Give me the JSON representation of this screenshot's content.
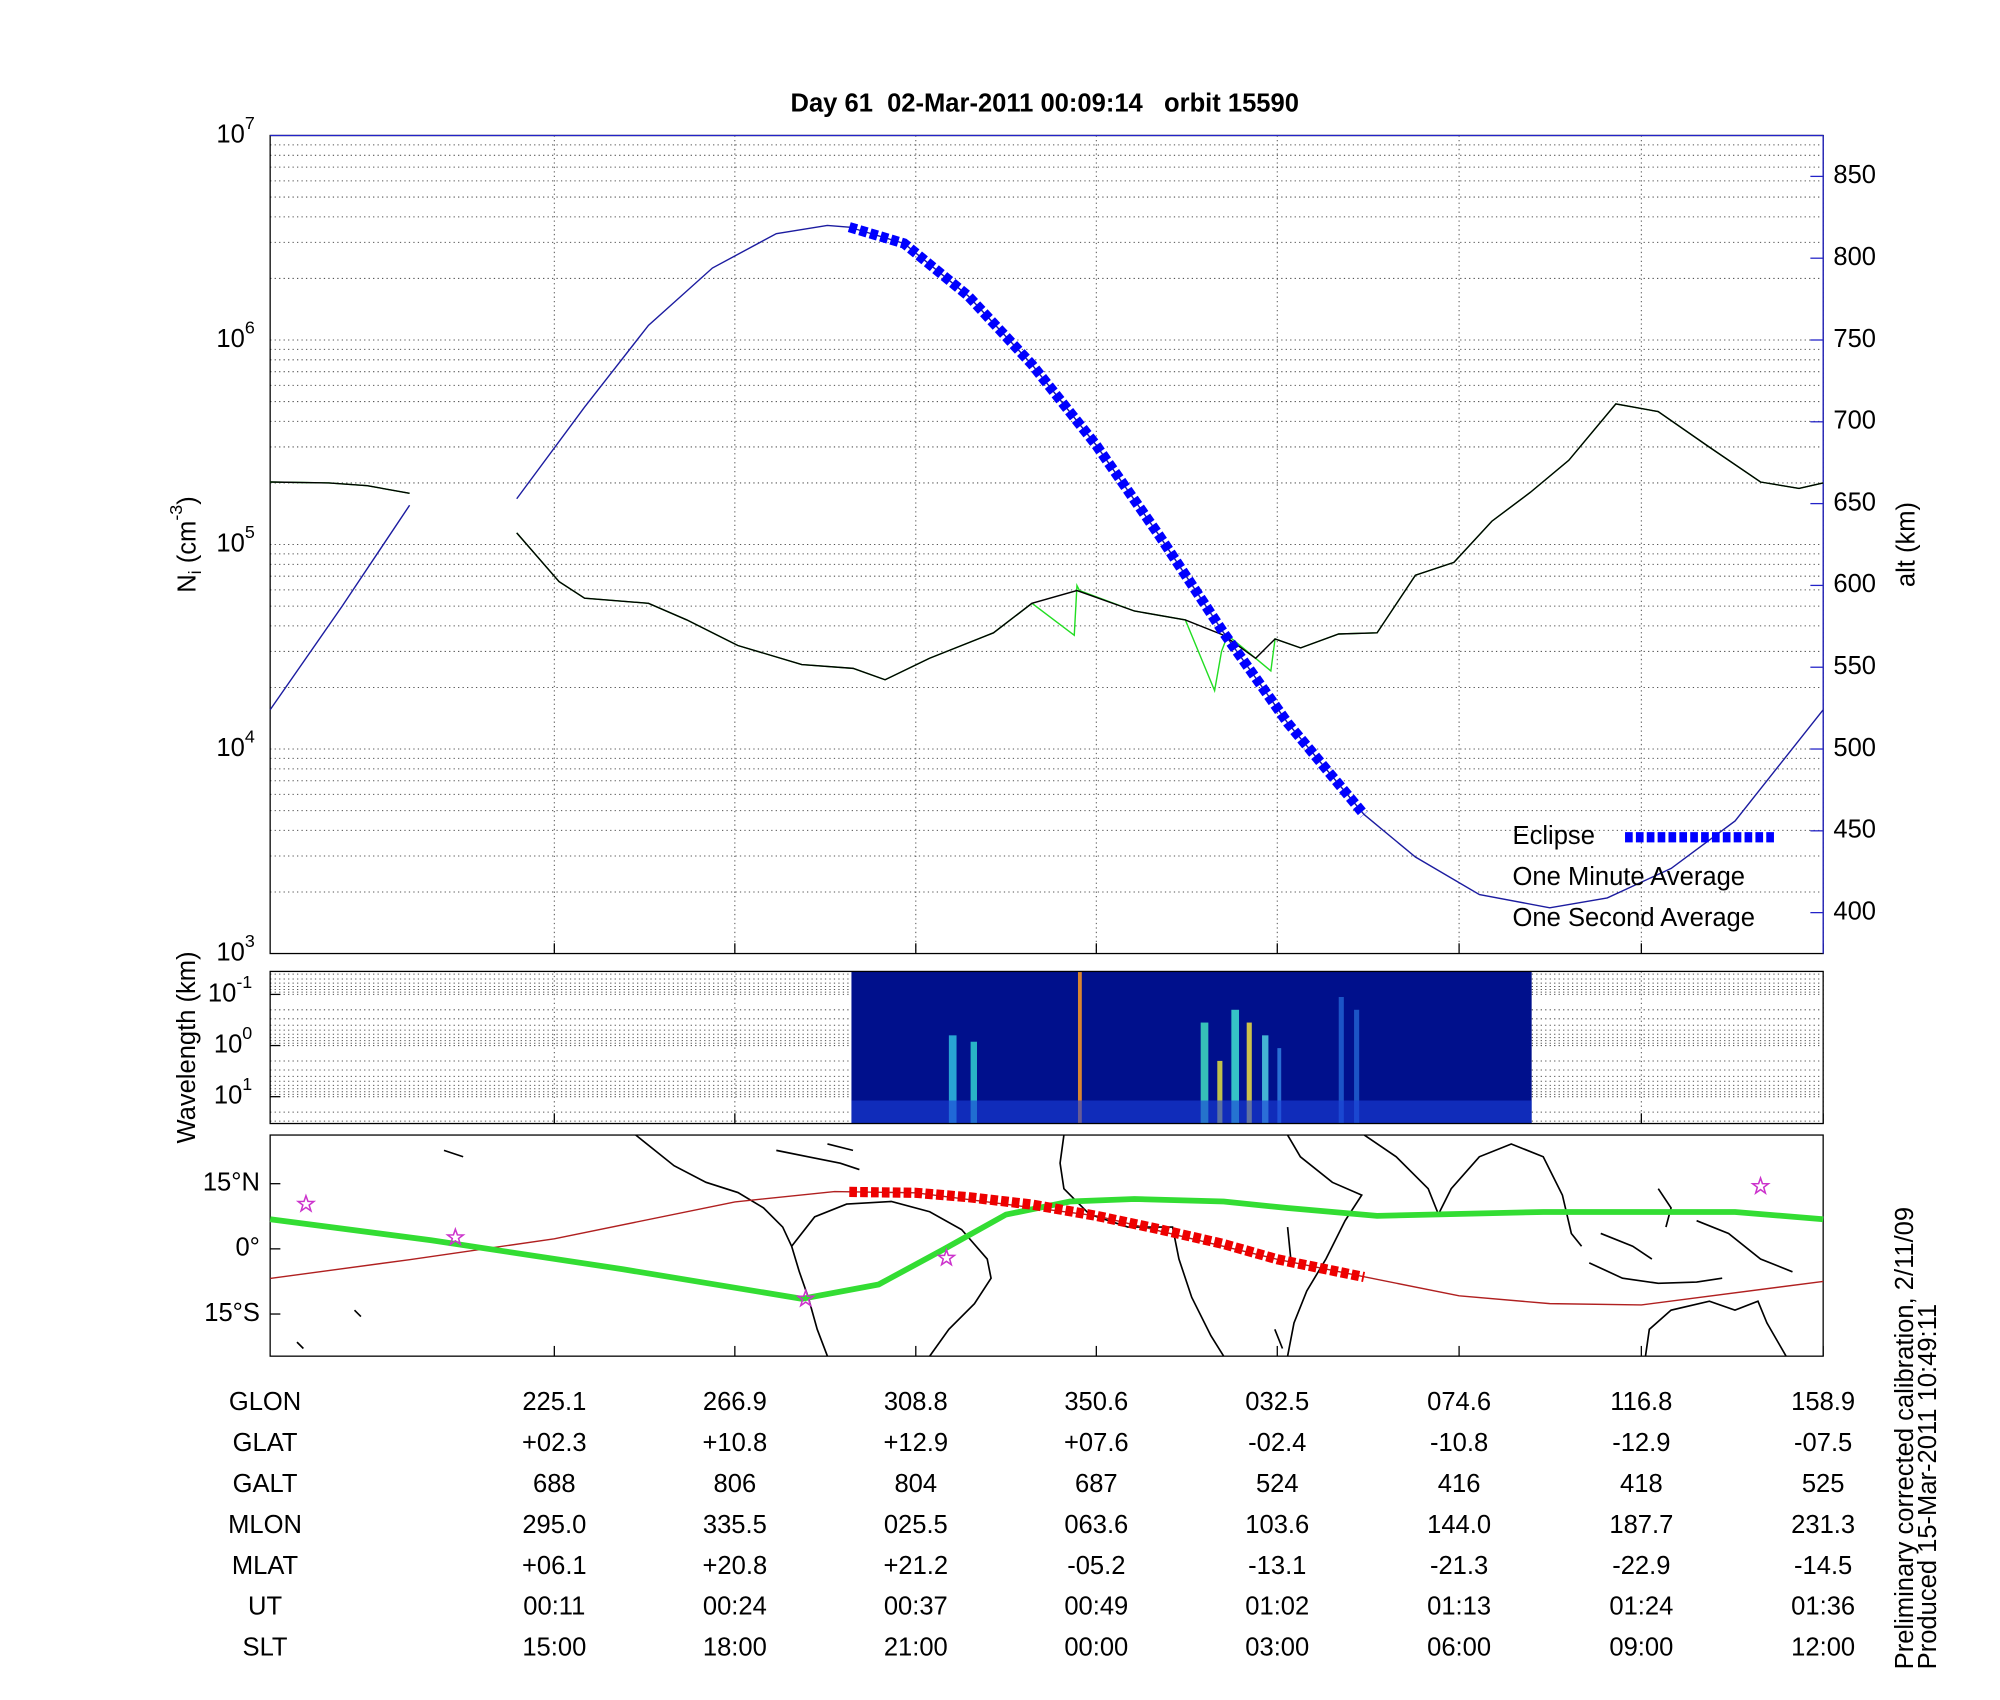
{
  "chart_data": [
    {
      "type": "line",
      "title": "Day 61  02-Mar-2011 00:09:14   orbit 15590",
      "ylabel": [
        "N",
        "i",
        " (cm",
        "-3",
        ")"
      ],
      "y2label": "alt (km)",
      "xlim": [
        159.3,
        518.9
      ],
      "xticks": [
        225.1,
        266.9,
        308.8,
        350.6,
        392.5,
        434.6,
        476.8,
        518.9
      ],
      "ylim": [
        1000,
        10000000
      ],
      "log_y": true,
      "yticks": [
        {
          "value": 1000,
          "label": "10",
          "exponent": "3"
        },
        {
          "value": 10000,
          "label": "10",
          "exponent": "4"
        },
        {
          "value": 100000,
          "label": "10",
          "exponent": "5"
        },
        {
          "value": 1000000,
          "label": "10",
          "exponent": "6"
        },
        {
          "value": 10000000,
          "label": "10",
          "exponent": "7"
        }
      ],
      "y2lim": [
        375,
        875
      ],
      "y2ticks": [
        400,
        450,
        500,
        550,
        600,
        650,
        700,
        750,
        800,
        850
      ],
      "y2color": "#2323c8",
      "grid": true,
      "legend": "lower right",
      "series": [
        {
          "color": "#1c1ca0",
          "axis": "y2",
          "x": [
            159.3,
            175.9,
            191.6,
            null,
            216.4,
            232.1,
            246.9,
            261.7,
            276.5,
            288.3,
            293.4,
            306.1,
            320.9,
            335.7,
            350.5,
            365.3,
            380.1,
            394.9,
            412.6,
            424.5,
            439.3,
            455.6,
            468.9,
            483.7,
            498.5,
            518.9
          ],
          "values": [
            524,
            587,
            649,
            null,
            653,
            709,
            759,
            794,
            815,
            820,
            819,
            809,
            777,
            735,
            686,
            630,
            571,
            516,
            460,
            434,
            411,
            403,
            409,
            427,
            456,
            524
          ]
        },
        {
          "name": "One Second Average",
          "color": "#22dd22",
          "x": [
            159.3,
            172.9,
            181.8,
            191.6,
            null,
            216.4,
            226.2,
            232.1,
            246.9,
            255.8,
            267.6,
            282.4,
            294.3,
            301.7,
            312.0,
            326.8,
            335.7,
            345.5,
            346.1,
            346.7,
            359.4,
            371.2,
            378.0,
            379.6,
            381.0,
            387.5,
            391.0,
            392.0,
            397.9,
            406.7,
            415.6,
            424.5,
            433.4,
            442.2,
            451.1,
            460.0,
            470.9,
            480.7,
            492.6,
            504.4,
            513.3,
            518.9
          ],
          "values": [
            202000,
            200000,
            194000,
            178000,
            null,
            114000,
            65900,
            54600,
            51600,
            42800,
            32100,
            25900,
            24800,
            21800,
            27800,
            37000,
            51600,
            36000,
            63000,
            59600,
            47300,
            42800,
            19300,
            30000,
            36000,
            27800,
            24100,
            34500,
            31200,
            36500,
            37000,
            70800,
            81700,
            130000,
            180000,
            258000,
            487000,
            447000,
            299000,
            202000,
            188000,
            200000
          ]
        },
        {
          "name": "One Minute Average",
          "color": "#000000",
          "x": [
            159.3,
            172.9,
            181.8,
            191.6,
            null,
            216.4,
            226.2,
            232.1,
            246.9,
            255.8,
            267.6,
            282.4,
            294.3,
            301.7,
            312.0,
            326.8,
            335.7,
            346.1,
            359.4,
            371.2,
            380.1,
            387.5,
            392.0,
            397.9,
            406.7,
            415.6,
            424.5,
            433.4,
            442.2,
            451.1,
            460.0,
            470.9,
            480.7,
            492.6,
            504.4,
            513.3,
            518.9
          ],
          "values": [
            202000,
            200000,
            194000,
            178000,
            null,
            114000,
            65900,
            54600,
            51600,
            42800,
            32100,
            25900,
            24800,
            21800,
            27800,
            37000,
            51600,
            59600,
            47300,
            42800,
            36000,
            27800,
            34500,
            31200,
            36500,
            37000,
            70800,
            81700,
            130000,
            180000,
            258000,
            487000,
            447000,
            299000,
            202000,
            188000,
            200000
          ]
        },
        {
          "name": "Eclipse",
          "color": "#0000ff",
          "axis": "y2",
          "dashed": true,
          "x": [
            293.4,
            306.1,
            320.9,
            335.7,
            350.5,
            365.3,
            380.1,
            394.9,
            412.6
          ],
          "values": [
            819,
            809,
            777,
            735,
            686,
            630,
            571,
            516,
            460
          ]
        }
      ]
    },
    {
      "type": "heatmap",
      "ylabel": "Wavelength (km)",
      "xlim": [
        159.3,
        518.9
      ],
      "xticks": [
        225.1,
        266.9,
        308.8,
        350.6,
        392.5,
        434.6,
        476.8,
        518.9
      ],
      "ylim": [
        0.0355,
        33.5
      ],
      "log_y": true,
      "y_reversed": true,
      "yticks": [
        {
          "value": 0.1,
          "label": "10",
          "exponent": "-1"
        },
        {
          "value": 1,
          "label": "10",
          "exponent": "0"
        },
        {
          "value": 10,
          "label": "10",
          "exponent": "1"
        }
      ],
      "grid": true,
      "extent": [
        293.9,
        451.4
      ],
      "color": "#00108c"
    },
    {
      "type": "map",
      "xlim": [
        159.3,
        518.9
      ],
      "xticks": [
        225.1,
        266.9,
        308.8,
        350.6,
        392.5,
        434.6,
        476.8,
        518.9
      ],
      "ylim": [
        -24.7,
        26.2
      ],
      "yticks": [
        {
          "value": 15,
          "label": "15°N"
        },
        {
          "value": 0,
          "label": "0°"
        },
        {
          "value": -15,
          "label": "15°S"
        }
      ],
      "series": [
        {
          "color": "#b02020",
          "x": [
            159.3,
            191.6,
            225.1,
            266.9,
            290.0,
            308.8,
            350.6,
            392.5,
            434.6,
            455.6,
            476.8,
            518.9
          ],
          "values": [
            -6.8,
            -2.5,
            2.3,
            10.8,
            13.2,
            12.9,
            7.6,
            -2.4,
            -10.8,
            -12.6,
            -12.9,
            -7.5
          ]
        },
        {
          "color": "#33dd33",
          "thick": true,
          "x": [
            159.3,
            196.6,
            241.0,
            282.4,
            300.2,
            314.9,
            329.7,
            344.5,
            359.4,
            380.1,
            394.9,
            415.6,
            454.1,
            498.5,
            518.9
          ],
          "values": [
            6.8,
            2.0,
            -4.7,
            -11.5,
            -8.2,
            -0.3,
            7.9,
            10.9,
            11.5,
            10.9,
            9.4,
            7.6,
            8.5,
            8.5,
            6.8
          ]
        },
        {
          "color": "#ee0000",
          "dashed": true,
          "x": [
            293.4,
            308.8,
            320.9,
            335.7,
            350.6,
            365.3,
            380.1,
            392.5,
            412.6
          ],
          "values": [
            13.1,
            12.9,
            11.9,
            10.2,
            7.6,
            4.5,
            1.1,
            -2.4,
            -6.5
          ]
        }
      ],
      "markers": {
        "color": "#cc33cc",
        "x": [
          167.6,
          202.2,
          283.3,
          315.9,
          504.4
        ],
        "values": [
          10.3,
          2.6,
          -11.5,
          -2.1,
          14.4
        ]
      }
    }
  ],
  "table": {
    "rows": [
      {
        "label": "GLON",
        "values": [
          "225.1",
          "266.9",
          "308.8",
          "350.6",
          "032.5",
          "074.6",
          "116.8",
          "158.9"
        ]
      },
      {
        "label": "GLAT",
        "values": [
          "+02.3",
          "+10.8",
          "+12.9",
          "+07.6",
          "-02.4",
          "-10.8",
          "-12.9",
          "-07.5"
        ]
      },
      {
        "label": "GALT",
        "values": [
          "688",
          "806",
          "804",
          "687",
          "524",
          "416",
          "418",
          "525"
        ]
      },
      {
        "label": "MLON",
        "values": [
          "295.0",
          "335.5",
          "025.5",
          "063.6",
          "103.6",
          "144.0",
          "187.7",
          "231.3"
        ]
      },
      {
        "label": "MLAT",
        "values": [
          "+06.1",
          "+20.8",
          "+21.2",
          "-05.2",
          "-13.1",
          "-21.3",
          "-22.9",
          "-14.5"
        ]
      },
      {
        "label": "UT",
        "values": [
          "00:11",
          "00:24",
          "00:37",
          "00:49",
          "01:02",
          "01:13",
          "01:24",
          "01:36"
        ]
      },
      {
        "label": "SLT",
        "values": [
          "15:00",
          "18:00",
          "21:00",
          "00:00",
          "03:00",
          "06:00",
          "09:00",
          "12:00"
        ]
      }
    ]
  },
  "footer": [
    "Preliminary corrected calibration, 2/11/09",
    "Produced 15-Mar-2011 10:49:11"
  ]
}
